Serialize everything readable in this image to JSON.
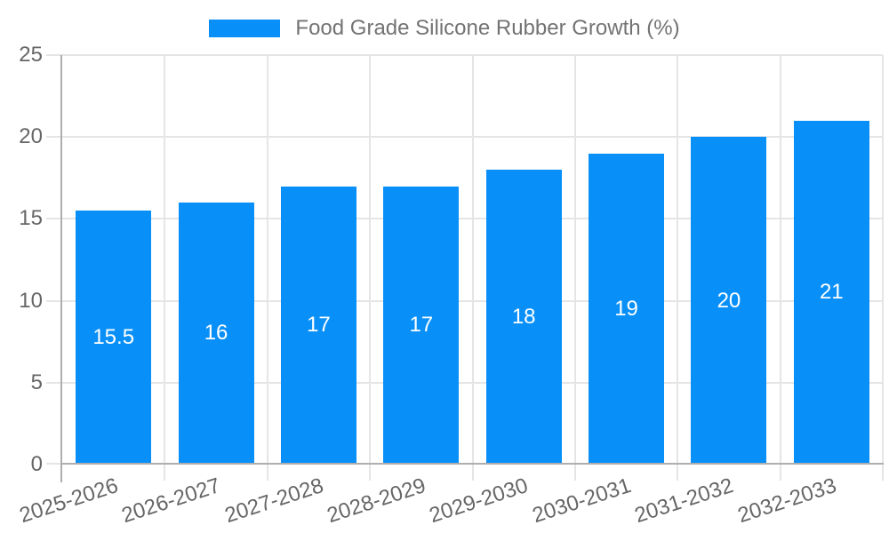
{
  "chart_data": {
    "type": "bar",
    "title": "",
    "legend": "Food Grade Silicone Rubber Growth (%)",
    "legend_position": "top-center",
    "categories": [
      "2025-2026",
      "2026-2027",
      "2027-2028",
      "2028-2029",
      "2029-2030",
      "2030-2031",
      "2031-2032",
      "2032-2033"
    ],
    "values": [
      15.5,
      16,
      17,
      17,
      18,
      19,
      20,
      21
    ],
    "data_labels": [
      "15.5",
      "16",
      "17",
      "17",
      "18",
      "19",
      "20",
      "21"
    ],
    "xlabel": "",
    "ylabel": "",
    "ylim": [
      0,
      25
    ],
    "yticks": [
      0,
      5,
      10,
      15,
      20,
      25
    ],
    "grid": true,
    "colors": {
      "bar": "#0990f8",
      "grid": "#e5e5e5",
      "axis": "#aeaeae",
      "tick_label": "#666666",
      "legend_text": "#737373",
      "data_label": "#ffffff",
      "background": "#ffffff"
    }
  }
}
